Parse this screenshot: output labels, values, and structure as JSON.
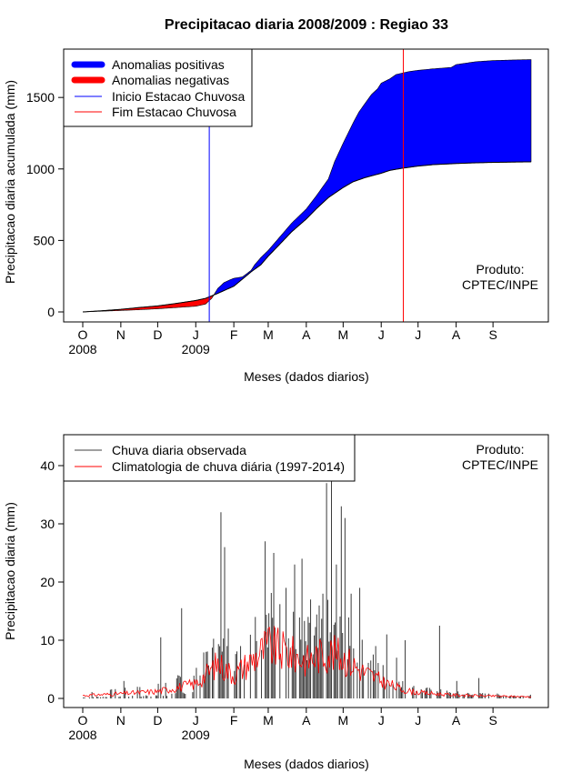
{
  "chart_data": [
    {
      "type": "area",
      "title": "Precipitacao diaria 2008/2009 : Regiao 33",
      "xlabel": "Meses (dados diarios)",
      "ylabel": "Precipitacao diaria acumulada (mm)",
      "x_unit": "days since 2008-10-01",
      "xlim": [
        0,
        365
      ],
      "ylim": [
        0,
        1800
      ],
      "yticks": [
        0,
        500,
        1000,
        1500
      ],
      "month_ticks": [
        0,
        31,
        61,
        92,
        123,
        151,
        182,
        212,
        243,
        273,
        304,
        334
      ],
      "month_labels": [
        "O",
        "N",
        "D",
        "J",
        "F",
        "M",
        "A",
        "M",
        "J",
        "J",
        "A",
        "S"
      ],
      "year_labels": [
        {
          "day": 0,
          "text": "2008"
        },
        {
          "day": 92,
          "text": "2009"
        }
      ],
      "legend": {
        "position": "top-left",
        "entries": [
          {
            "label": "Anomalias positivas",
            "color": "#0000ff",
            "style": "thick"
          },
          {
            "label": "Anomalias negativas",
            "color": "#ff0000",
            "style": "thick"
          },
          {
            "label": "Inicio Estacao Chuvosa",
            "color": "#0000ff",
            "style": "thin"
          },
          {
            "label": "Fim Estacao Chuvosa",
            "color": "#ff0000",
            "style": "thin"
          }
        ]
      },
      "product_note": [
        "Produto:",
        "CPTEC/INPE"
      ],
      "season_start_day": 103,
      "season_end_day": 261,
      "series": [
        {
          "name": "Climatologia acumulada",
          "x": [
            0,
            15,
            31,
            45,
            61,
            75,
            92,
            100,
            110,
            123,
            130,
            137,
            145,
            151,
            160,
            170,
            182,
            190,
            200,
            212,
            220,
            230,
            243,
            250,
            260,
            273,
            285,
            304,
            320,
            334,
            350,
            365
          ],
          "values": [
            0,
            8,
            18,
            30,
            42,
            58,
            80,
            95,
            130,
            180,
            230,
            280,
            330,
            390,
            470,
            560,
            650,
            720,
            800,
            870,
            910,
            940,
            970,
            990,
            1005,
            1020,
            1030,
            1038,
            1043,
            1046,
            1048,
            1050
          ]
        },
        {
          "name": "Observada acumulada",
          "x": [
            0,
            15,
            31,
            45,
            61,
            75,
            92,
            100,
            105,
            110,
            115,
            120,
            123,
            130,
            137,
            140,
            145,
            151,
            160,
            170,
            182,
            190,
            195,
            200,
            205,
            212,
            220,
            225,
            230,
            235,
            240,
            243,
            250,
            255,
            260,
            265,
            273,
            285,
            300,
            304,
            320,
            334,
            350,
            365
          ],
          "values": [
            0,
            5,
            10,
            15,
            22,
            30,
            40,
            55,
            95,
            165,
            205,
            225,
            235,
            245,
            290,
            330,
            380,
            430,
            520,
            620,
            720,
            810,
            870,
            930,
            1050,
            1180,
            1320,
            1400,
            1460,
            1520,
            1560,
            1600,
            1630,
            1660,
            1670,
            1680,
            1690,
            1700,
            1710,
            1730,
            1750,
            1758,
            1762,
            1765
          ]
        }
      ]
    },
    {
      "type": "bar",
      "title": "",
      "xlabel": "Meses (dados diarios)",
      "ylabel": "Precipitacao diaria (mm)",
      "x_unit": "days since 2008-10-01",
      "xlim": [
        0,
        365
      ],
      "ylim": [
        0,
        45
      ],
      "yticks": [
        0,
        10,
        20,
        30,
        40
      ],
      "month_ticks": [
        0,
        31,
        61,
        92,
        123,
        151,
        182,
        212,
        243,
        273,
        304,
        334
      ],
      "month_labels": [
        "O",
        "N",
        "D",
        "J",
        "F",
        "M",
        "A",
        "M",
        "J",
        "J",
        "A",
        "S"
      ],
      "year_labels": [
        {
          "day": 0,
          "text": "2008"
        },
        {
          "day": 92,
          "text": "2009"
        }
      ],
      "legend": {
        "position": "top-left",
        "entries": [
          {
            "label": "Chuva diaria observada",
            "color": "#404040",
            "style": "thin"
          },
          {
            "label": "Climatologia de chuva diária (1997-2014)",
            "color": "#ff0000",
            "style": "thin"
          }
        ]
      },
      "product_note": [
        "Produto:",
        "CPTEC/INPE"
      ],
      "observed_daily_rain_note": "daily observed bars; values generated from seasonal shape with visible peaks",
      "series": [
        {
          "name": "Chuva diaria observada",
          "peaks": [
            {
              "day": 33,
              "value": 3
            },
            {
              "day": 63,
              "value": 10.5
            },
            {
              "day": 80,
              "value": 15.5
            },
            {
              "day": 100,
              "value": 8
            },
            {
              "day": 112,
              "value": 32
            },
            {
              "day": 115,
              "value": 26
            },
            {
              "day": 118,
              "value": 12
            },
            {
              "day": 128,
              "value": 9
            },
            {
              "day": 140,
              "value": 14
            },
            {
              "day": 148,
              "value": 27
            },
            {
              "day": 155,
              "value": 25
            },
            {
              "day": 165,
              "value": 19
            },
            {
              "day": 172,
              "value": 23
            },
            {
              "day": 178,
              "value": 24
            },
            {
              "day": 185,
              "value": 17
            },
            {
              "day": 195,
              "value": 18
            },
            {
              "day": 198,
              "value": 37
            },
            {
              "day": 202,
              "value": 40
            },
            {
              "day": 206,
              "value": 23
            },
            {
              "day": 210,
              "value": 33
            },
            {
              "day": 213,
              "value": 31
            },
            {
              "day": 218,
              "value": 18
            },
            {
              "day": 225,
              "value": 19
            },
            {
              "day": 238,
              "value": 9
            },
            {
              "day": 247,
              "value": 11
            },
            {
              "day": 255,
              "value": 7
            },
            {
              "day": 262,
              "value": 10
            },
            {
              "day": 290,
              "value": 12.5
            },
            {
              "day": 304,
              "value": 3
            },
            {
              "day": 322,
              "value": 3.5
            }
          ]
        },
        {
          "name": "Climatologia de chuva diária (1997-2014)",
          "x": [
            0,
            30,
            61,
            92,
            100,
            110,
            123,
            140,
            151,
            165,
            182,
            200,
            212,
            225,
            243,
            260,
            273,
            300,
            334,
            365
          ],
          "values": [
            0.5,
            0.8,
            1.2,
            2.5,
            4,
            6,
            4,
            7,
            9,
            8,
            6.5,
            8,
            7,
            5,
            3,
            1.5,
            1,
            0.6,
            0.4,
            0.3
          ]
        }
      ]
    }
  ]
}
